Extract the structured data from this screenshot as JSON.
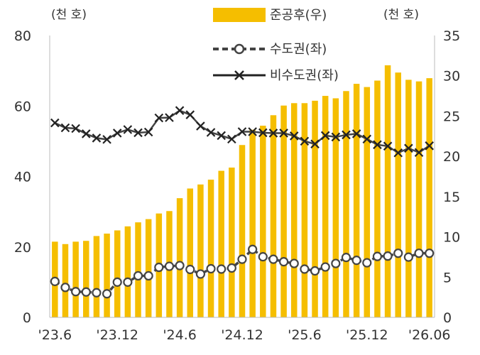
{
  "chart_data": {
    "type": "bar+line",
    "left_unit": "(천 호)",
    "right_unit": "(천 호)",
    "left_axis": {
      "min": 0,
      "max": 80,
      "ticks": [
        "0",
        "20",
        "40",
        "60",
        "80"
      ]
    },
    "right_axis": {
      "min": 0,
      "max": 35,
      "ticks": [
        "0",
        "5",
        "10",
        "15",
        "20",
        "25",
        "30",
        "35"
      ]
    },
    "x_tick_labels": [
      "'23.6",
      "'23.12",
      "'24.6",
      "'24.12",
      "'25.6",
      "'25.12",
      "'26.06"
    ],
    "x_tick_index": [
      0,
      6,
      12,
      18,
      24,
      30,
      36
    ],
    "grid": false,
    "legend_position": "top",
    "colors": {
      "bars": "#F5BE00",
      "capital": "#444444",
      "noncapital": "#444444"
    },
    "series": [
      {
        "name": "준공후(우)",
        "kind": "bar",
        "axis": "right",
        "values": [
          9.4,
          9.1,
          9.4,
          9.5,
          10.1,
          10.4,
          10.8,
          11.3,
          11.8,
          12.2,
          12.9,
          13.2,
          14.8,
          16.0,
          16.5,
          17.1,
          18.2,
          18.6,
          21.4,
          23.3,
          23.8,
          25.1,
          26.3,
          26.6,
          26.6,
          26.9,
          27.5,
          27.2,
          28.1,
          29.0,
          28.6,
          29.4,
          31.3,
          30.4,
          29.5,
          29.3,
          29.7
        ]
      },
      {
        "name": "수도권(좌)",
        "kind": "line",
        "axis": "left",
        "marker": "circle",
        "dash": true,
        "values": [
          10.2,
          8.5,
          7.3,
          7.2,
          7.0,
          6.7,
          10.0,
          10.0,
          11.8,
          11.8,
          14.2,
          14.5,
          14.7,
          13.6,
          12.3,
          13.8,
          13.7,
          14.0,
          16.5,
          19.3,
          17.2,
          16.5,
          15.8,
          15.3,
          13.7,
          13.2,
          14.3,
          15.3,
          17.0,
          16.2,
          15.5,
          17.3,
          17.4,
          18.2,
          17.1,
          18.2,
          18.2
        ]
      },
      {
        "name": "비수도권(좌)",
        "kind": "line",
        "axis": "left",
        "marker": "x",
        "dash": false,
        "values": [
          55.2,
          53.8,
          53.6,
          52.1,
          50.9,
          50.5,
          52.3,
          53.3,
          52.4,
          52.6,
          56.6,
          56.7,
          58.7,
          57.5,
          54.3,
          52.5,
          51.6,
          50.6,
          52.7,
          52.7,
          52.4,
          52.3,
          52.3,
          51.5,
          50.0,
          49.2,
          51.6,
          51.2,
          51.8,
          52.1,
          50.6,
          49.0,
          48.6,
          46.7,
          48.0,
          46.8,
          48.7
        ]
      }
    ]
  }
}
